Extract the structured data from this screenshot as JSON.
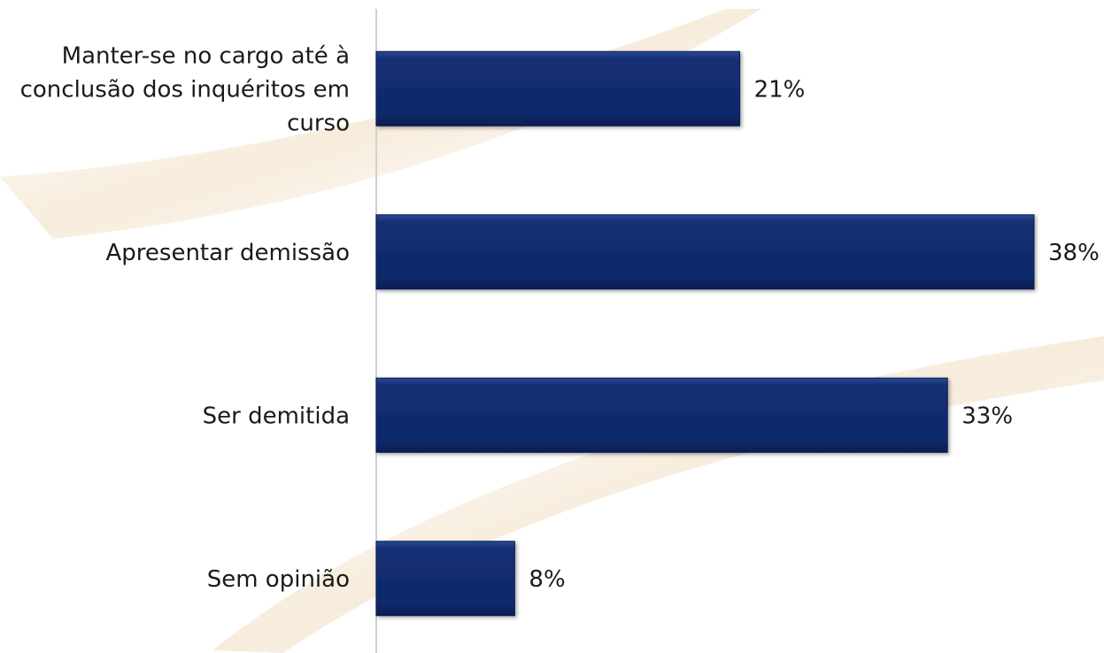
{
  "chart_data": {
    "type": "bar",
    "orientation": "horizontal",
    "categories": [
      [
        "Manter-se no cargo até à",
        "conclusão dos inquéritos em",
        "curso"
      ],
      [
        "Apresentar demissão"
      ],
      [
        "Ser demitida"
      ],
      [
        "Sem opinião"
      ]
    ],
    "values": [
      21,
      38,
      33,
      8
    ],
    "value_labels": [
      "21%",
      "38%",
      "33%",
      "8%"
    ],
    "unit": "%",
    "xlim": [
      0,
      38
    ],
    "grid": false,
    "legend": "none",
    "title": "",
    "xlabel": "",
    "ylabel": ""
  },
  "colors": {
    "bar_fill": "#0f2a6b",
    "bar_highlight": "#2a4a95",
    "bar_edge": "#0a1d4f",
    "axis_line": "#d0d0d0",
    "background": "#ffffff",
    "watermark": "#f6ead8"
  }
}
